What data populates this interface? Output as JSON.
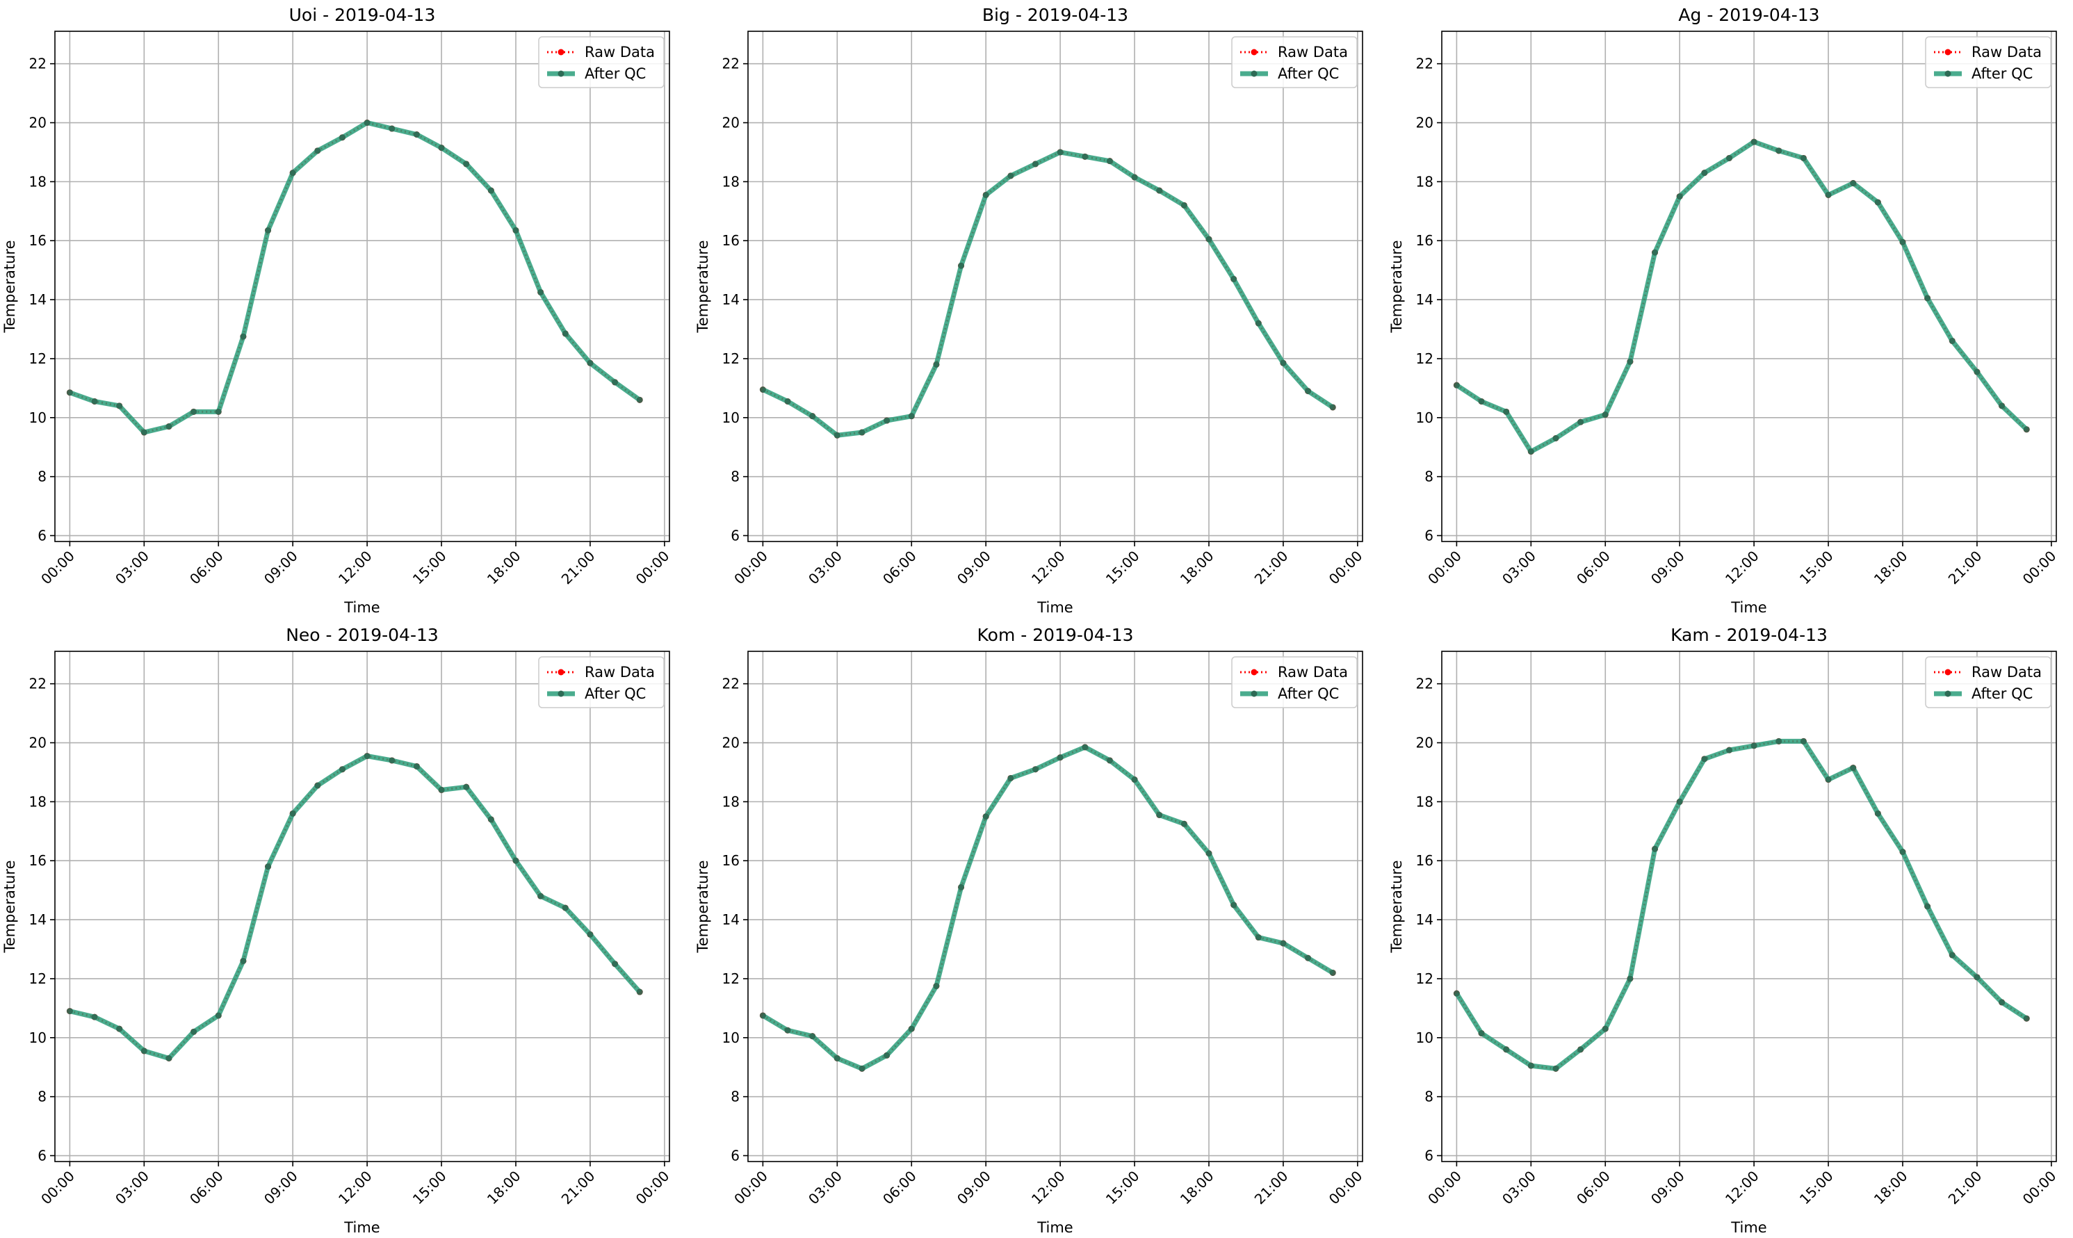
{
  "colors": {
    "raw": "#ff0000",
    "qc": "#2a9d7a",
    "qc_marker": "#2d6b55",
    "grid": "#b0b0b0",
    "axes": "#000000"
  },
  "legend": {
    "raw_label": "Raw Data",
    "qc_label": "After QC",
    "placement": "upper-right"
  },
  "x_tick_labels": [
    "00:00",
    "03:00",
    "06:00",
    "09:00",
    "12:00",
    "15:00",
    "18:00",
    "21:00",
    "00:00"
  ],
  "chart_data": [
    {
      "type": "line",
      "title": "Uoi - 2019-04-13",
      "xlabel": "Time",
      "ylabel": "Temperature",
      "xlim_hours": [
        -0.6,
        24.2
      ],
      "ylim": [
        5.8,
        23.1
      ],
      "yticks": [
        6,
        8,
        10,
        12,
        14,
        16,
        18,
        20,
        22
      ],
      "grid": true,
      "x_hours": [
        0,
        1,
        2,
        3,
        4,
        5,
        6,
        7,
        8,
        9,
        10,
        11,
        12,
        13,
        14,
        15,
        16,
        17,
        18,
        19,
        20,
        21,
        22,
        23
      ],
      "series": [
        {
          "name": "Raw Data",
          "values": [
            10.85,
            10.55,
            10.4,
            9.5,
            9.7,
            10.2,
            10.2,
            12.75,
            16.35,
            18.3,
            19.05,
            19.5,
            20.0,
            19.8,
            19.6,
            19.15,
            18.6,
            17.7,
            16.35,
            14.25,
            12.85,
            11.85,
            11.2,
            10.6
          ]
        },
        {
          "name": "After QC",
          "values": [
            10.85,
            10.55,
            10.4,
            9.5,
            9.7,
            10.2,
            10.2,
            12.75,
            16.35,
            18.3,
            19.05,
            19.5,
            20.0,
            19.8,
            19.6,
            19.15,
            18.6,
            17.7,
            16.35,
            14.25,
            12.85,
            11.85,
            11.2,
            10.6
          ]
        }
      ]
    },
    {
      "type": "line",
      "title": "Big - 2019-04-13",
      "xlabel": "Time",
      "ylabel": "Temperature",
      "xlim_hours": [
        -0.6,
        24.2
      ],
      "ylim": [
        5.8,
        23.1
      ],
      "yticks": [
        6,
        8,
        10,
        12,
        14,
        16,
        18,
        20,
        22
      ],
      "grid": true,
      "x_hours": [
        0,
        1,
        2,
        3,
        4,
        5,
        6,
        7,
        8,
        9,
        10,
        11,
        12,
        13,
        14,
        15,
        16,
        17,
        18,
        19,
        20,
        21,
        22,
        23
      ],
      "series": [
        {
          "name": "Raw Data",
          "values": [
            10.95,
            10.55,
            10.05,
            9.4,
            9.5,
            9.9,
            10.05,
            11.8,
            15.15,
            17.55,
            18.2,
            18.6,
            19.0,
            18.85,
            18.7,
            18.15,
            17.7,
            17.2,
            16.05,
            14.7,
            13.2,
            11.85,
            10.9,
            10.35
          ]
        },
        {
          "name": "After QC",
          "values": [
            10.95,
            10.55,
            10.05,
            9.4,
            9.5,
            9.9,
            10.05,
            11.8,
            15.15,
            17.55,
            18.2,
            18.6,
            19.0,
            18.85,
            18.7,
            18.15,
            17.7,
            17.2,
            16.05,
            14.7,
            13.2,
            11.85,
            10.9,
            10.35
          ]
        }
      ]
    },
    {
      "type": "line",
      "title": "Ag - 2019-04-13",
      "xlabel": "Time",
      "ylabel": "Temperature",
      "xlim_hours": [
        -0.6,
        24.2
      ],
      "ylim": [
        5.8,
        23.1
      ],
      "yticks": [
        6,
        8,
        10,
        12,
        14,
        16,
        18,
        20,
        22
      ],
      "grid": true,
      "x_hours": [
        0,
        1,
        2,
        3,
        4,
        5,
        6,
        7,
        8,
        9,
        10,
        11,
        12,
        13,
        14,
        15,
        16,
        17,
        18,
        19,
        20,
        21,
        22,
        23
      ],
      "series": [
        {
          "name": "Raw Data",
          "values": [
            11.1,
            10.55,
            10.2,
            8.85,
            9.3,
            9.85,
            10.1,
            11.9,
            15.6,
            17.5,
            18.3,
            18.8,
            19.35,
            19.05,
            18.8,
            17.55,
            17.95,
            17.3,
            15.95,
            14.05,
            12.6,
            11.55,
            10.4,
            9.6
          ]
        },
        {
          "name": "After QC",
          "values": [
            11.1,
            10.55,
            10.2,
            8.85,
            9.3,
            9.85,
            10.1,
            11.9,
            15.6,
            17.5,
            18.3,
            18.8,
            19.35,
            19.05,
            18.8,
            17.55,
            17.95,
            17.3,
            15.95,
            14.05,
            12.6,
            11.55,
            10.4,
            9.6
          ]
        }
      ]
    },
    {
      "type": "line",
      "title": "Neo - 2019-04-13",
      "xlabel": "Time",
      "ylabel": "Temperature",
      "xlim_hours": [
        -0.6,
        24.2
      ],
      "ylim": [
        5.8,
        23.1
      ],
      "yticks": [
        6,
        8,
        10,
        12,
        14,
        16,
        18,
        20,
        22
      ],
      "grid": true,
      "x_hours": [
        0,
        1,
        2,
        3,
        4,
        5,
        6,
        7,
        8,
        9,
        10,
        11,
        12,
        13,
        14,
        15,
        16,
        17,
        18,
        19,
        20,
        21,
        22,
        23
      ],
      "series": [
        {
          "name": "Raw Data",
          "values": [
            10.9,
            10.7,
            10.3,
            9.55,
            9.3,
            10.2,
            10.75,
            12.6,
            15.8,
            17.6,
            18.55,
            19.1,
            19.55,
            19.4,
            19.2,
            18.4,
            18.5,
            17.4,
            16.0,
            14.8,
            14.4,
            13.5,
            12.5,
            11.55
          ]
        },
        {
          "name": "After QC",
          "values": [
            10.9,
            10.7,
            10.3,
            9.55,
            9.3,
            10.2,
            10.75,
            12.6,
            15.8,
            17.6,
            18.55,
            19.1,
            19.55,
            19.4,
            19.2,
            18.4,
            18.5,
            17.4,
            16.0,
            14.8,
            14.4,
            13.5,
            12.5,
            11.55
          ]
        }
      ]
    },
    {
      "type": "line",
      "title": "Kom - 2019-04-13",
      "xlabel": "Time",
      "ylabel": "Temperature",
      "xlim_hours": [
        -0.6,
        24.2
      ],
      "ylim": [
        5.8,
        23.1
      ],
      "yticks": [
        6,
        8,
        10,
        12,
        14,
        16,
        18,
        20,
        22
      ],
      "grid": true,
      "x_hours": [
        0,
        1,
        2,
        3,
        4,
        5,
        6,
        7,
        8,
        9,
        10,
        11,
        12,
        13,
        14,
        15,
        16,
        17,
        18,
        19,
        20,
        21,
        22,
        23
      ],
      "series": [
        {
          "name": "Raw Data",
          "values": [
            10.75,
            10.25,
            10.05,
            9.3,
            8.95,
            9.4,
            10.3,
            11.75,
            15.1,
            17.5,
            18.8,
            19.1,
            19.5,
            19.85,
            19.4,
            18.75,
            17.55,
            17.25,
            16.25,
            14.5,
            13.4,
            13.2,
            12.7,
            12.2
          ]
        },
        {
          "name": "After QC",
          "values": [
            10.75,
            10.25,
            10.05,
            9.3,
            8.95,
            9.4,
            10.3,
            11.75,
            15.1,
            17.5,
            18.8,
            19.1,
            19.5,
            19.85,
            19.4,
            18.75,
            17.55,
            17.25,
            16.25,
            14.5,
            13.4,
            13.2,
            12.7,
            12.2
          ]
        }
      ]
    },
    {
      "type": "line",
      "title": "Kam - 2019-04-13",
      "xlabel": "Time",
      "ylabel": "Temperature",
      "xlim_hours": [
        -0.6,
        24.2
      ],
      "ylim": [
        5.8,
        23.1
      ],
      "yticks": [
        6,
        8,
        10,
        12,
        14,
        16,
        18,
        20,
        22
      ],
      "grid": true,
      "x_hours": [
        0,
        1,
        2,
        3,
        4,
        5,
        6,
        7,
        8,
        9,
        10,
        11,
        12,
        13,
        14,
        15,
        16,
        17,
        18,
        19,
        20,
        21,
        22,
        23
      ],
      "series": [
        {
          "name": "Raw Data",
          "values": [
            11.5,
            10.15,
            9.6,
            9.05,
            8.95,
            9.6,
            10.3,
            12.0,
            16.4,
            18.0,
            19.45,
            19.75,
            19.9,
            20.05,
            20.05,
            18.75,
            19.15,
            17.6,
            16.3,
            14.45,
            12.8,
            12.05,
            11.2,
            10.65
          ]
        },
        {
          "name": "After QC",
          "values": [
            11.5,
            10.15,
            9.6,
            9.05,
            8.95,
            9.6,
            10.3,
            12.0,
            16.4,
            18.0,
            19.45,
            19.75,
            19.9,
            20.05,
            20.05,
            18.75,
            19.15,
            17.6,
            16.3,
            14.45,
            12.8,
            12.05,
            11.2,
            10.65
          ]
        }
      ]
    }
  ]
}
